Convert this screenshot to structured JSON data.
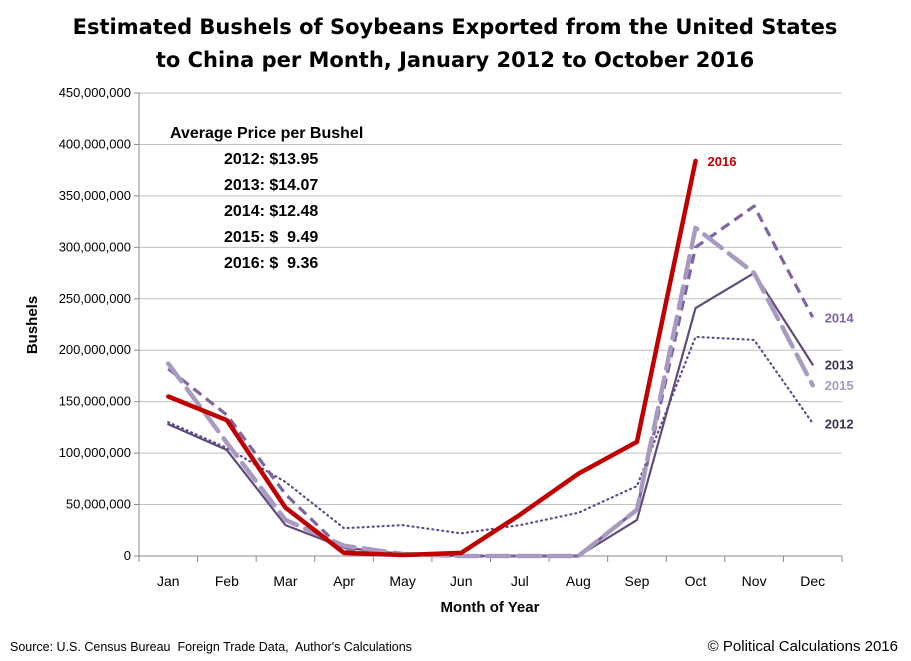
{
  "chart_data": {
    "type": "line",
    "title_lines": [
      "Estimated Bushels of Soybeans Exported from the United States",
      "to China per Month, January 2012 to October 2016"
    ],
    "xlabel": "Month of Year",
    "ylabel": "Bushels",
    "categories": [
      "Jan",
      "Feb",
      "Mar",
      "Apr",
      "May",
      "Jun",
      "Jul",
      "Aug",
      "Sep",
      "Oct",
      "Nov",
      "Dec"
    ],
    "ylim": [
      0,
      450000000
    ],
    "yticks": [
      "0",
      "50,000,000",
      "100,000,000",
      "150,000,000",
      "200,000,000",
      "250,000,000",
      "300,000,000",
      "350,000,000",
      "400,000,000",
      "450,000,000"
    ],
    "grid": true,
    "series": [
      {
        "name": "2012",
        "style": "dotted",
        "color": "#5f4b8b",
        "label_color": "#403152",
        "values": [
          130000000,
          105000000,
          72000000,
          27000000,
          30000000,
          22000000,
          30000000,
          42000000,
          68000000,
          213000000,
          210000000,
          129000000
        ]
      },
      {
        "name": "2013",
        "style": "solid",
        "color": "#604a7b",
        "label_color": "#403152",
        "values": [
          128000000,
          103000000,
          30000000,
          8000000,
          2000000,
          0,
          0,
          0,
          35000000,
          241000000,
          275000000,
          186000000
        ]
      },
      {
        "name": "2014",
        "style": "dashed",
        "color": "#8064a2",
        "label_color": "#8064a2",
        "values": [
          182000000,
          137000000,
          60000000,
          5000000,
          1000000,
          0,
          0,
          0,
          45000000,
          300000000,
          340000000,
          232000000
        ]
      },
      {
        "name": "2015",
        "style": "longdash",
        "color": "#a99bc0",
        "label_color": "#a99bc0",
        "values": [
          187000000,
          110000000,
          35000000,
          10000000,
          2000000,
          0,
          0,
          0,
          45000000,
          319000000,
          275000000,
          166000000
        ]
      },
      {
        "name": "2016",
        "style": "thick",
        "color": "#c00000",
        "label_color": "#c00000",
        "values": [
          155000000,
          132000000,
          47000000,
          3000000,
          1000000,
          3000000,
          40000000,
          80000000,
          111000000,
          384000000,
          null,
          null
        ]
      }
    ],
    "annotation": {
      "heading": "Average Price per Bushel",
      "lines": [
        "2012: $13.95",
        "2013: $14.07",
        "2014: $12.48",
        "2015: $  9.49",
        "2016: $  9.36"
      ]
    }
  },
  "footer": {
    "source": "Source: U.S. Census Bureau  Foreign Trade Data,  Author's Calculations",
    "copyright": "© Political Calculations 2016"
  }
}
